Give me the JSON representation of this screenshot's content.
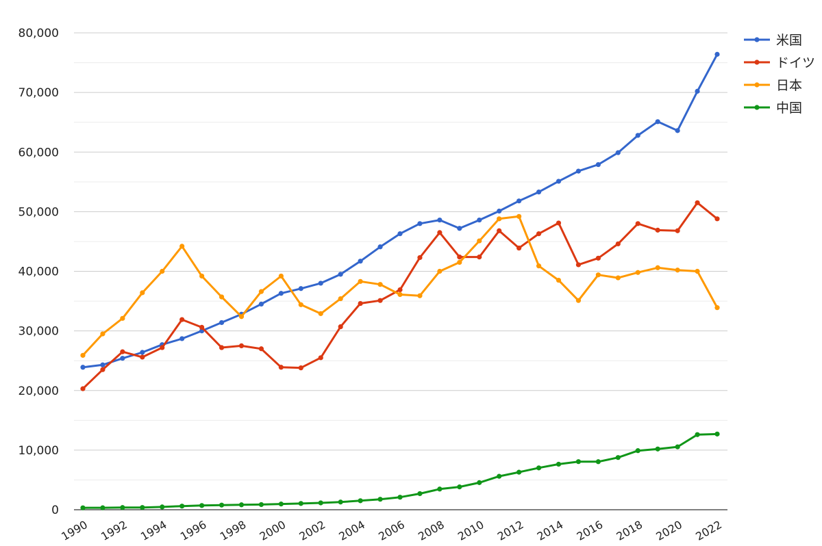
{
  "chart_data": {
    "type": "line",
    "title": "",
    "xlabel": "",
    "ylabel": "",
    "ylim": [
      0,
      80000
    ],
    "yticks": [
      "0",
      "10,000",
      "20,000",
      "30,000",
      "40,000",
      "50,000",
      "60,000",
      "70,000",
      "80,000"
    ],
    "xticks": [
      "1990",
      "1992",
      "1994",
      "1996",
      "1998",
      "2000",
      "2002",
      "2004",
      "2006",
      "2008",
      "2010",
      "2012",
      "2014",
      "2016",
      "2018",
      "2020",
      "2022"
    ],
    "grid": true,
    "legend_position": "top-right",
    "x": [
      1990,
      1991,
      1992,
      1993,
      1994,
      1995,
      1996,
      1997,
      1998,
      1999,
      2000,
      2001,
      2002,
      2003,
      2004,
      2005,
      2006,
      2007,
      2008,
      2009,
      2010,
      2011,
      2012,
      2013,
      2014,
      2015,
      2016,
      2017,
      2018,
      2019,
      2020,
      2021,
      2022
    ],
    "series": [
      {
        "name": "米国",
        "color": "#3366cc",
        "values": [
          23900,
          24300,
          25400,
          26400,
          27700,
          28700,
          30000,
          31400,
          32800,
          34500,
          36300,
          37100,
          38000,
          39500,
          41700,
          44100,
          46300,
          48000,
          48600,
          47200,
          48600,
          50100,
          51800,
          53300,
          55100,
          56800,
          57900,
          59900,
          62800,
          65100,
          63600,
          70200,
          76400
        ]
      },
      {
        "name": "ドイツ",
        "color": "#dc3912",
        "values": [
          20300,
          23500,
          26500,
          25600,
          27200,
          31900,
          30600,
          27200,
          27500,
          27000,
          23900,
          23800,
          25500,
          30700,
          34600,
          35100,
          36900,
          42300,
          46500,
          42400,
          42400,
          46800,
          43900,
          46300,
          48100,
          41100,
          42200,
          44600,
          48000,
          46900,
          46800,
          51500,
          48800
        ]
      },
      {
        "name": "日本",
        "color": "#ff9900",
        "values": [
          25900,
          29500,
          32100,
          36400,
          40000,
          44200,
          39200,
          35700,
          32400,
          36600,
          39200,
          34400,
          32900,
          35400,
          38300,
          37800,
          36100,
          35900,
          40000,
          41500,
          45100,
          48800,
          49200,
          40900,
          38500,
          35100,
          39400,
          38900,
          39800,
          40600,
          40200,
          40000,
          33900
        ]
      },
      {
        "name": "中国",
        "color": "#109618",
        "values": [
          320,
          330,
          370,
          380,
          470,
          610,
          710,
          780,
          830,
          870,
          960,
          1050,
          1150,
          1290,
          1510,
          1760,
          2100,
          2700,
          3470,
          3830,
          4550,
          5610,
          6300,
          7020,
          7640,
          8070,
          8060,
          8760,
          9910,
          10190,
          10550,
          12600,
          12700
        ]
      }
    ]
  }
}
